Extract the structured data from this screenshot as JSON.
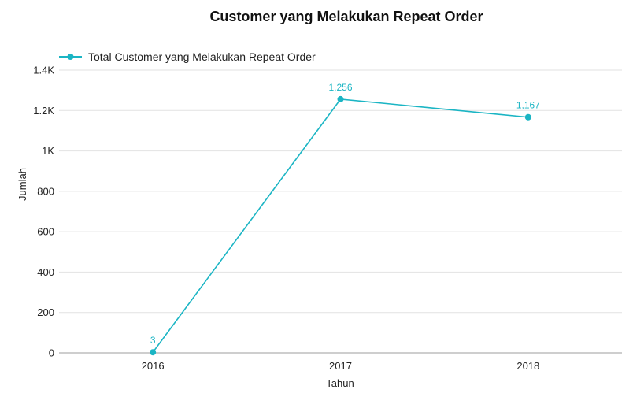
{
  "chart_data": {
    "type": "line",
    "title": "Customer yang Melakukan Repeat Order",
    "xlabel": "Tahun",
    "ylabel": "Jumlah",
    "categories": [
      "2016",
      "2017",
      "2018"
    ],
    "series": [
      {
        "name": "Total Customer yang Melakukan Repeat Order",
        "values": [
          3,
          1256,
          1167
        ],
        "data_labels": [
          "3",
          "1,256",
          "1,167"
        ]
      }
    ],
    "ylim": [
      0,
      1400
    ],
    "yticks": [
      0,
      200,
      400,
      600,
      800,
      1000,
      1200,
      1400
    ],
    "ytick_labels": [
      "0",
      "200",
      "400",
      "600",
      "800",
      "1K",
      "1.2K",
      "1.4K"
    ],
    "grid": true,
    "legend_position": "top-left",
    "colors": {
      "series": "#1bb5c4",
      "grid": "#e2e2e2",
      "axis": "#9e9e9e"
    }
  }
}
